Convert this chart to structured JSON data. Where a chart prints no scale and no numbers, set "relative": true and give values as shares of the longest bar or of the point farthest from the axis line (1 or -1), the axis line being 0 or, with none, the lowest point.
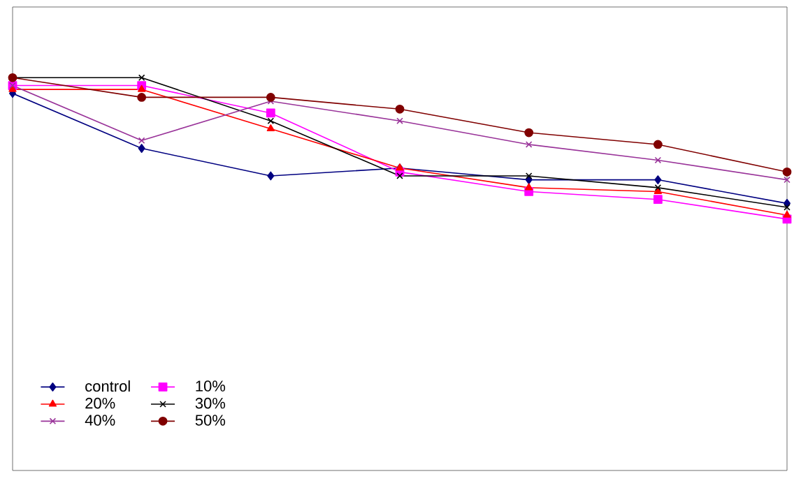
{
  "chart_data": {
    "type": "line",
    "relative": true,
    "legend": "bottom left",
    "categories": [
      null,
      null,
      null,
      null,
      null,
      null,
      null
    ],
    "series": [
      {
        "name": "control",
        "color": "#000080",
        "marker": "diamond",
        "values": [
          0.96,
          0.82,
          0.75,
          0.77,
          0.74,
          0.74,
          0.68
        ]
      },
      {
        "name": "10%",
        "color": "#ff00ff",
        "marker": "square",
        "values": [
          0.98,
          0.98,
          0.91,
          0.76,
          0.71,
          0.69,
          0.64
        ]
      },
      {
        "name": "20%",
        "color": "#ff0000",
        "marker": "triangle",
        "values": [
          0.97,
          0.97,
          0.87,
          0.77,
          0.72,
          0.71,
          0.65
        ]
      },
      {
        "name": "30%",
        "color": "#000000",
        "marker": "cross",
        "values": [
          1,
          1,
          0.89,
          0.75,
          0.75,
          0.72,
          0.67
        ]
      },
      {
        "name": "40%",
        "color": "#993399",
        "marker": "cross",
        "values": [
          0.98,
          0.84,
          0.94,
          0.89,
          0.83,
          0.79,
          0.74
        ]
      },
      {
        "name": "50%",
        "color": "#800000",
        "marker": "circle",
        "values": [
          1,
          0.95,
          0.95,
          0.92,
          0.86,
          0.83,
          0.76
        ]
      }
    ]
  }
}
